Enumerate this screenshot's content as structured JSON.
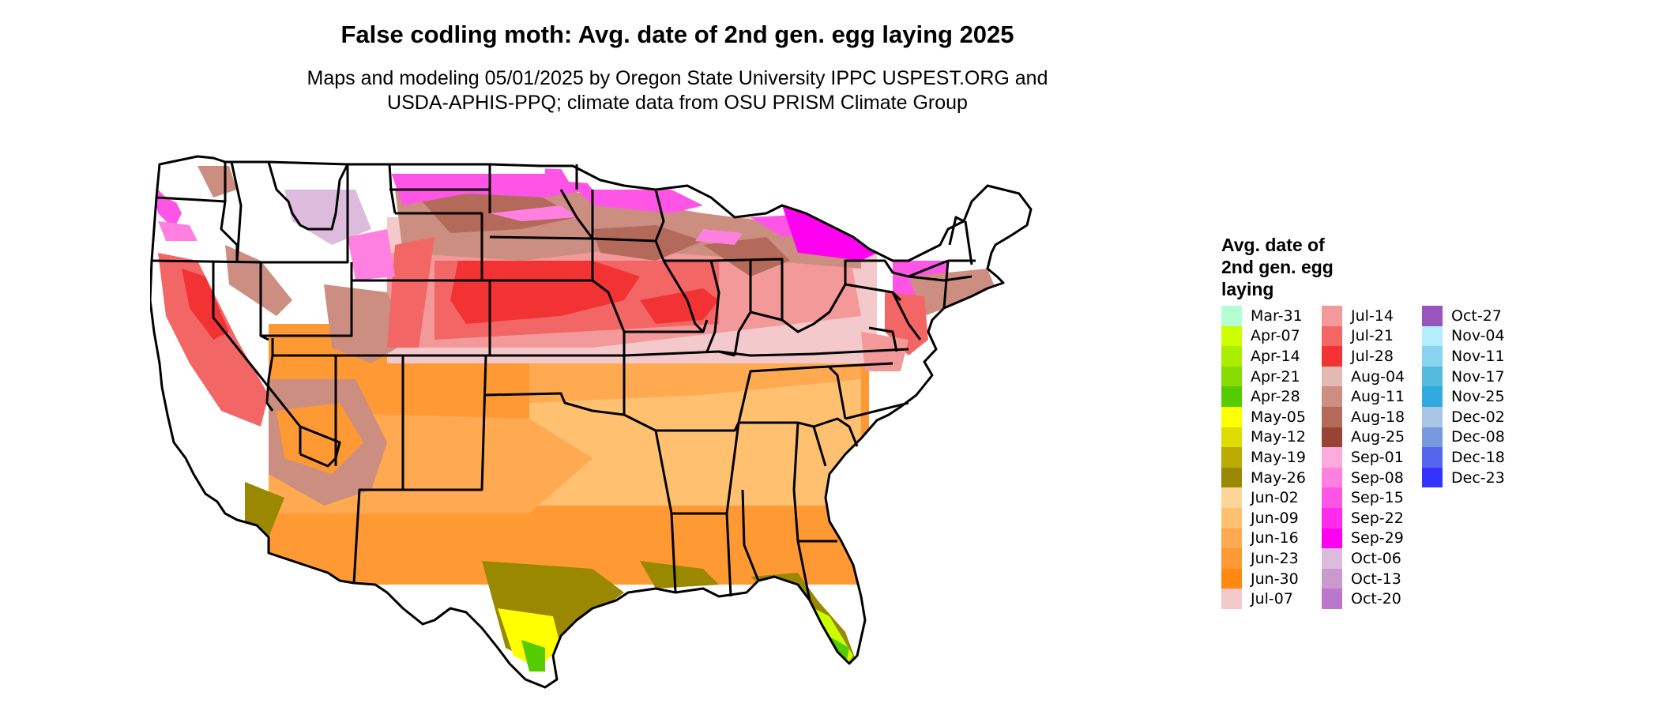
{
  "title": "False codling moth: Avg. date of 2nd gen. egg laying 2025",
  "subtitle_line1": "Maps and modeling 05/01/2025 by Oregon State University IPPC USPEST.ORG and",
  "subtitle_line2": "USDA-APHIS-PPQ; climate data from OSU PRISM Climate Group",
  "legend": {
    "title_line1": "Avg. date of",
    "title_line2": "2nd gen. egg",
    "title_line3": "laying",
    "columns": [
      [
        {
          "label": "Mar-31",
          "color": "#b3ffd1"
        },
        {
          "label": "Apr-07",
          "color": "#ccff00"
        },
        {
          "label": "Apr-14",
          "color": "#aaee00"
        },
        {
          "label": "Apr-21",
          "color": "#88dd00"
        },
        {
          "label": "Apr-28",
          "color": "#55cc00"
        },
        {
          "label": "May-05",
          "color": "#ffff00"
        },
        {
          "label": "May-12",
          "color": "#dddd00"
        },
        {
          "label": "May-19",
          "color": "#bbaa00"
        },
        {
          "label": "May-26",
          "color": "#998800"
        },
        {
          "label": "Jun-02",
          "color": "#ffd699"
        },
        {
          "label": "Jun-09",
          "color": "#ffc070"
        },
        {
          "label": "Jun-16",
          "color": "#ffaa50"
        },
        {
          "label": "Jun-23",
          "color": "#ff9933"
        },
        {
          "label": "Jun-30",
          "color": "#ff8811"
        },
        {
          "label": "Jul-07",
          "color": "#f3c9cc"
        }
      ],
      [
        {
          "label": "Jul-14",
          "color": "#f39999"
        },
        {
          "label": "Jul-21",
          "color": "#f36666"
        },
        {
          "label": "Jul-28",
          "color": "#f33333"
        },
        {
          "label": "Aug-04",
          "color": "#e2b9b3"
        },
        {
          "label": "Aug-11",
          "color": "#cc8e80"
        },
        {
          "label": "Aug-18",
          "color": "#b36a5a"
        },
        {
          "label": "Aug-25",
          "color": "#994433"
        },
        {
          "label": "Sep-01",
          "color": "#ffaade"
        },
        {
          "label": "Sep-08",
          "color": "#ff80e0"
        },
        {
          "label": "Sep-15",
          "color": "#ff55e6"
        },
        {
          "label": "Sep-22",
          "color": "#ff2aeb"
        },
        {
          "label": "Sep-29",
          "color": "#ff00f0"
        },
        {
          "label": "Oct-06",
          "color": "#ddbbdd"
        },
        {
          "label": "Oct-13",
          "color": "#cc99cc"
        },
        {
          "label": "Oct-20",
          "color": "#bb77cc"
        }
      ],
      [
        {
          "label": "Oct-27",
          "color": "#9955bb"
        },
        {
          "label": "Nov-04",
          "color": "#b3eeff"
        },
        {
          "label": "Nov-11",
          "color": "#88d4ee"
        },
        {
          "label": "Nov-17",
          "color": "#55bbdd"
        },
        {
          "label": "Nov-25",
          "color": "#33aadd"
        },
        {
          "label": "Dec-02",
          "color": "#aac4e6"
        },
        {
          "label": "Dec-08",
          "color": "#7799dd"
        },
        {
          "label": "Dec-18",
          "color": "#5566ee"
        },
        {
          "label": "Dec-23",
          "color": "#3333ff"
        }
      ]
    ]
  }
}
